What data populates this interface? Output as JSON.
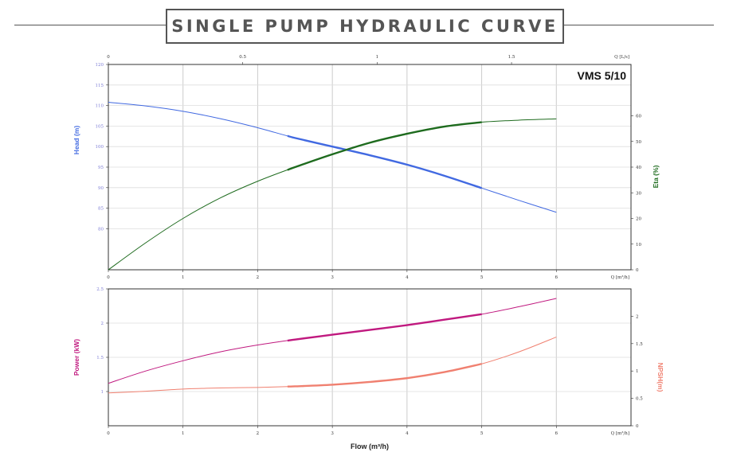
{
  "title": "SINGLE PUMP HYDRAULIC CURVE",
  "colors": {
    "head": "#4169e1",
    "eta": "#1e6b1e",
    "power": "#c0197f",
    "npsh": "#f08070",
    "grid": "#cccccc",
    "frame": "#333333"
  },
  "chart_data": [
    {
      "type": "line",
      "model_label": "VMS 5/10",
      "x_label": "Q [m³/h]",
      "x_ticks": [
        0,
        1,
        2,
        3,
        4,
        5,
        6
      ],
      "top_axis_label": "Q [L/s]",
      "top_axis_ticks": [
        "0",
        "0.5",
        "1",
        "1.5"
      ],
      "y_left_label": "Head (m)",
      "y_left_ticks": [
        "80",
        "85",
        "90",
        "95",
        "100",
        "105",
        "110",
        "115",
        "120"
      ],
      "y_left_range": [
        70,
        120
      ],
      "y_right_label": "Eta (%)",
      "y_right_ticks": [
        "0",
        "10",
        "20",
        "30",
        "40",
        "50",
        "60"
      ],
      "y_right_range": [
        0,
        80
      ],
      "operating_range": [
        2.4,
        5
      ],
      "series": [
        {
          "name": "Head (m)",
          "axis": "left",
          "x": [
            0,
            0.5,
            1,
            1.5,
            2,
            2.5,
            3,
            3.5,
            4,
            4.5,
            5,
            5.5,
            6
          ],
          "values": [
            110.8,
            109.9,
            108.6,
            106.8,
            104.6,
            102.1,
            100.0,
            97.9,
            95.6,
            92.9,
            89.9,
            86.9,
            84.0
          ]
        },
        {
          "name": "Eta (%)",
          "axis": "right",
          "x": [
            0,
            0.5,
            1,
            1.5,
            2,
            2.5,
            3,
            3.5,
            4,
            4.5,
            5,
            5.5,
            6
          ],
          "values": [
            0,
            10.5,
            20,
            28,
            34.5,
            40,
            45,
            49.5,
            53,
            55.8,
            57.5,
            58.3,
            58.8
          ]
        }
      ]
    },
    {
      "type": "line",
      "x_label": "Q [m³/h]",
      "x_ticks": [
        0,
        1,
        2,
        3,
        4,
        5,
        6
      ],
      "xlabel_bottom": "Flow (m³/h)",
      "y_left_label": "Power (kW)",
      "y_left_ticks": [
        "1",
        "1.5",
        "2",
        "2.5"
      ],
      "y_left_range": [
        0.5,
        2.5
      ],
      "y_right_label": "NPSH(m)",
      "y_right_ticks": [
        "0",
        "0.5",
        "1",
        "1.5",
        "2"
      ],
      "y_right_range": [
        0,
        2.5
      ],
      "operating_range": [
        2.4,
        5
      ],
      "series": [
        {
          "name": "Power (kW)",
          "axis": "left",
          "x": [
            0,
            0.5,
            1,
            1.5,
            2,
            2.5,
            3,
            3.5,
            4,
            4.5,
            5,
            5.5,
            6
          ],
          "values": [
            1.12,
            1.3,
            1.45,
            1.58,
            1.68,
            1.76,
            1.83,
            1.9,
            1.97,
            2.05,
            2.13,
            2.24,
            2.36
          ]
        },
        {
          "name": "NPSH(m)",
          "axis": "right",
          "x": [
            0,
            0.5,
            1,
            1.5,
            2,
            2.5,
            3,
            3.5,
            4,
            4.5,
            5,
            5.5,
            6
          ],
          "values": [
            0.6,
            0.63,
            0.67,
            0.69,
            0.7,
            0.72,
            0.75,
            0.8,
            0.87,
            0.98,
            1.13,
            1.35,
            1.62
          ]
        }
      ]
    }
  ]
}
